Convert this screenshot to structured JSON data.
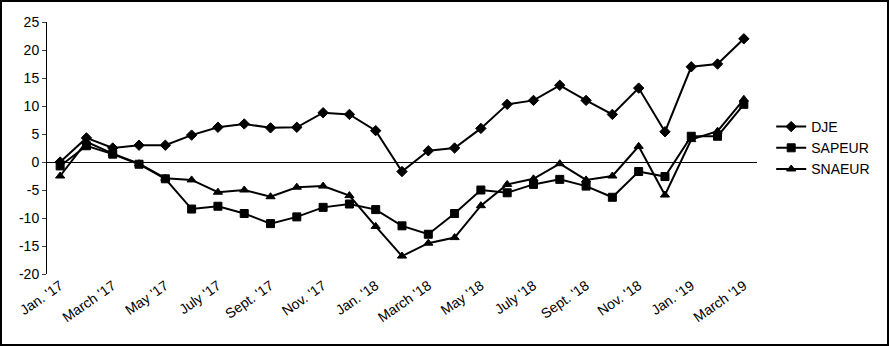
{
  "chart_data": {
    "type": "line",
    "categories": [
      "Jan. '17",
      null,
      "March '17",
      null,
      "May '17",
      null,
      "July '17",
      null,
      "Sept. '17",
      null,
      "Nov. '17",
      null,
      "Jan. '18",
      null,
      "March '18",
      null,
      "May '18",
      null,
      "July '18",
      null,
      "Sept. '18",
      null,
      "Nov. '18",
      null,
      "Jan. '19",
      null,
      "March '19"
    ],
    "series": [
      {
        "name": "DJE",
        "color": "#000000",
        "marker": "diamond",
        "line_style": "solid",
        "values": [
          0,
          4.3,
          2.5,
          3,
          3,
          4.8,
          6.2,
          6.8,
          6.1,
          6.2,
          8.8,
          8.5,
          5.6,
          -1.7,
          2,
          2.5,
          6,
          10.3,
          11,
          13.7,
          11,
          8.5,
          13.2,
          5.4,
          17,
          17.5,
          22
        ]
      },
      {
        "name": "SAPEUR",
        "color": "#000000",
        "marker": "square",
        "line_style": "solid",
        "values": [
          -0.7,
          2.9,
          1.4,
          -0.4,
          -3,
          -8.4,
          -7.9,
          -9.2,
          -11,
          -9.8,
          -8.1,
          -7.5,
          -8.5,
          -11.4,
          -12.9,
          -9.2,
          -5,
          -5.5,
          -4,
          -3.1,
          -4.3,
          -6.3,
          -1.7,
          -2.6,
          4.6,
          4.6,
          10.3
        ]
      },
      {
        "name": "SNAEUR",
        "color": "#000000",
        "marker": "triangle-up",
        "line_style": "solid",
        "values": [
          -2.5,
          3.6,
          1.5,
          -0.3,
          -2.9,
          -3.2,
          -5.4,
          -5,
          -6.2,
          -4.5,
          -4.3,
          -6,
          -11.5,
          -16.8,
          -14.5,
          -13.5,
          -7.8,
          -4,
          -3,
          -0.3,
          -3.2,
          -2.5,
          2.8,
          -5.9,
          4,
          5.5,
          11.2
        ]
      }
    ],
    "ylim": [
      -20,
      25
    ],
    "yticks": [
      -20,
      -15,
      -10,
      -5,
      0,
      5,
      10,
      15,
      20,
      25
    ],
    "grid": false,
    "legend": "right"
  }
}
